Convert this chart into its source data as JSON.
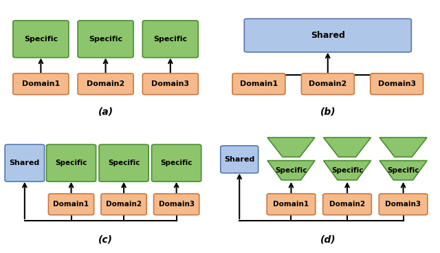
{
  "green_color": "#8DC56C",
  "green_edge": "#4a8a30",
  "blue_color": "#AEC6E8",
  "blue_edge": "#5577aa",
  "orange_color": "#F5B98A",
  "orange_edge": "#c87840",
  "bg_color": "#ffffff",
  "text_color": "#000000",
  "fig_labels": [
    "(a)",
    "(b)",
    "(c)",
    "(d)"
  ]
}
